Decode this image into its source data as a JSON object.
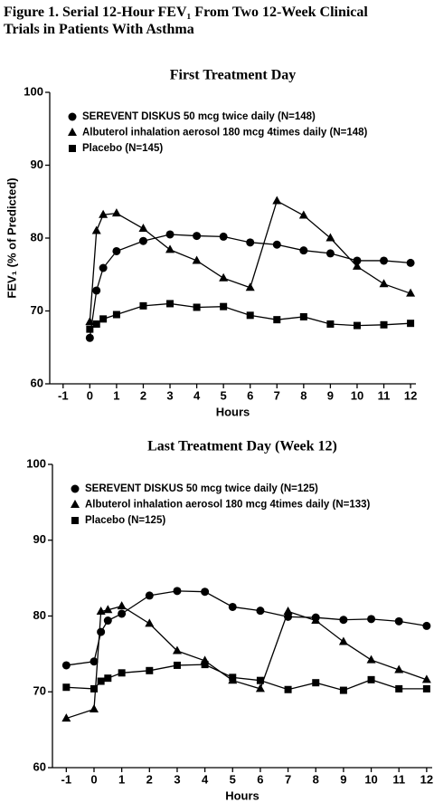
{
  "figure_title": "Figure 1. Serial 12-Hour FEV₁ From Two 12-Week Clinical Trials in Patients With Asthma",
  "chart_data": [
    {
      "type": "line",
      "title": "First Treatment Day",
      "x_label": "Hours",
      "y_label": "FEV₁ (% of Predicted)",
      "x": [
        0,
        0.25,
        0.5,
        1,
        2,
        3,
        4,
        5,
        6,
        7,
        8,
        9,
        10,
        11,
        12
      ],
      "xlim": [
        -1.5,
        12.2
      ],
      "xticks": [
        -1,
        0,
        1,
        2,
        3,
        4,
        5,
        6,
        7,
        8,
        9,
        10,
        11,
        12
      ],
      "ylim": [
        60,
        100
      ],
      "yticks": [
        60,
        70,
        80,
        90,
        100
      ],
      "legend": "upper left",
      "series": [
        {
          "name": "SEREVENT DISKUS 50 mcg twice daily (N=148)",
          "color": "#000000",
          "marker": "circle",
          "values": [
            66.3,
            72.8,
            75.9,
            78.2,
            79.6,
            80.5,
            80.3,
            80.2,
            79.4,
            79.1,
            78.3,
            77.9,
            76.9,
            76.9,
            76.6
          ]
        },
        {
          "name": "Albuterol inhalation aerosol 180 mcg 4times daily (N=148)",
          "color": "#000000",
          "marker": "triangle",
          "values": [
            68.5,
            81.0,
            83.2,
            83.4,
            81.3,
            78.4,
            76.9,
            74.5,
            73.2,
            85.1,
            83.1,
            80.0,
            76.1,
            73.7,
            72.4
          ]
        },
        {
          "name": "Placebo (N=145)",
          "color": "#000000",
          "marker": "square",
          "values": [
            67.5,
            68.2,
            68.9,
            69.5,
            70.7,
            71.0,
            70.5,
            70.6,
            69.4,
            68.8,
            69.2,
            68.2,
            68.0,
            68.1,
            68.3
          ]
        }
      ]
    },
    {
      "type": "line",
      "title": "Last Treatment Day (Week 12)",
      "x_label": "Hours",
      "x": [
        -1,
        0,
        0.25,
        0.5,
        1,
        2,
        3,
        4,
        5,
        6,
        7,
        8,
        9,
        10,
        11,
        12
      ],
      "xlim": [
        -1.5,
        12.2
      ],
      "xticks": [
        -1,
        0,
        1,
        2,
        3,
        4,
        5,
        6,
        7,
        8,
        9,
        10,
        11,
        12
      ],
      "ylim": [
        60,
        100
      ],
      "yticks": [
        60,
        70,
        80,
        90,
        100
      ],
      "legend": "upper left",
      "series": [
        {
          "name": "SEREVENT DISKUS 50 mcg twice daily (N=125)",
          "color": "#000000",
          "marker": "circle",
          "values": [
            73.5,
            74.0,
            77.9,
            79.4,
            80.3,
            82.7,
            83.3,
            83.2,
            81.2,
            80.7,
            79.9,
            79.8,
            79.5,
            79.6,
            79.3,
            78.7
          ]
        },
        {
          "name": "Albuterol inhalation aerosol 180 mcg 4times daily (N=133)",
          "color": "#000000",
          "marker": "triangle",
          "values": [
            66.5,
            67.7,
            80.6,
            80.8,
            81.3,
            79.0,
            75.4,
            74.1,
            71.5,
            70.4,
            80.6,
            79.4,
            76.6,
            74.2,
            72.9,
            71.6
          ]
        },
        {
          "name": "Placebo (N=125)",
          "color": "#000000",
          "marker": "square",
          "values": [
            70.6,
            70.4,
            71.4,
            71.8,
            72.5,
            72.8,
            73.5,
            73.6,
            71.9,
            71.5,
            70.3,
            71.2,
            70.2,
            71.6,
            70.4,
            70.4
          ]
        }
      ]
    }
  ]
}
